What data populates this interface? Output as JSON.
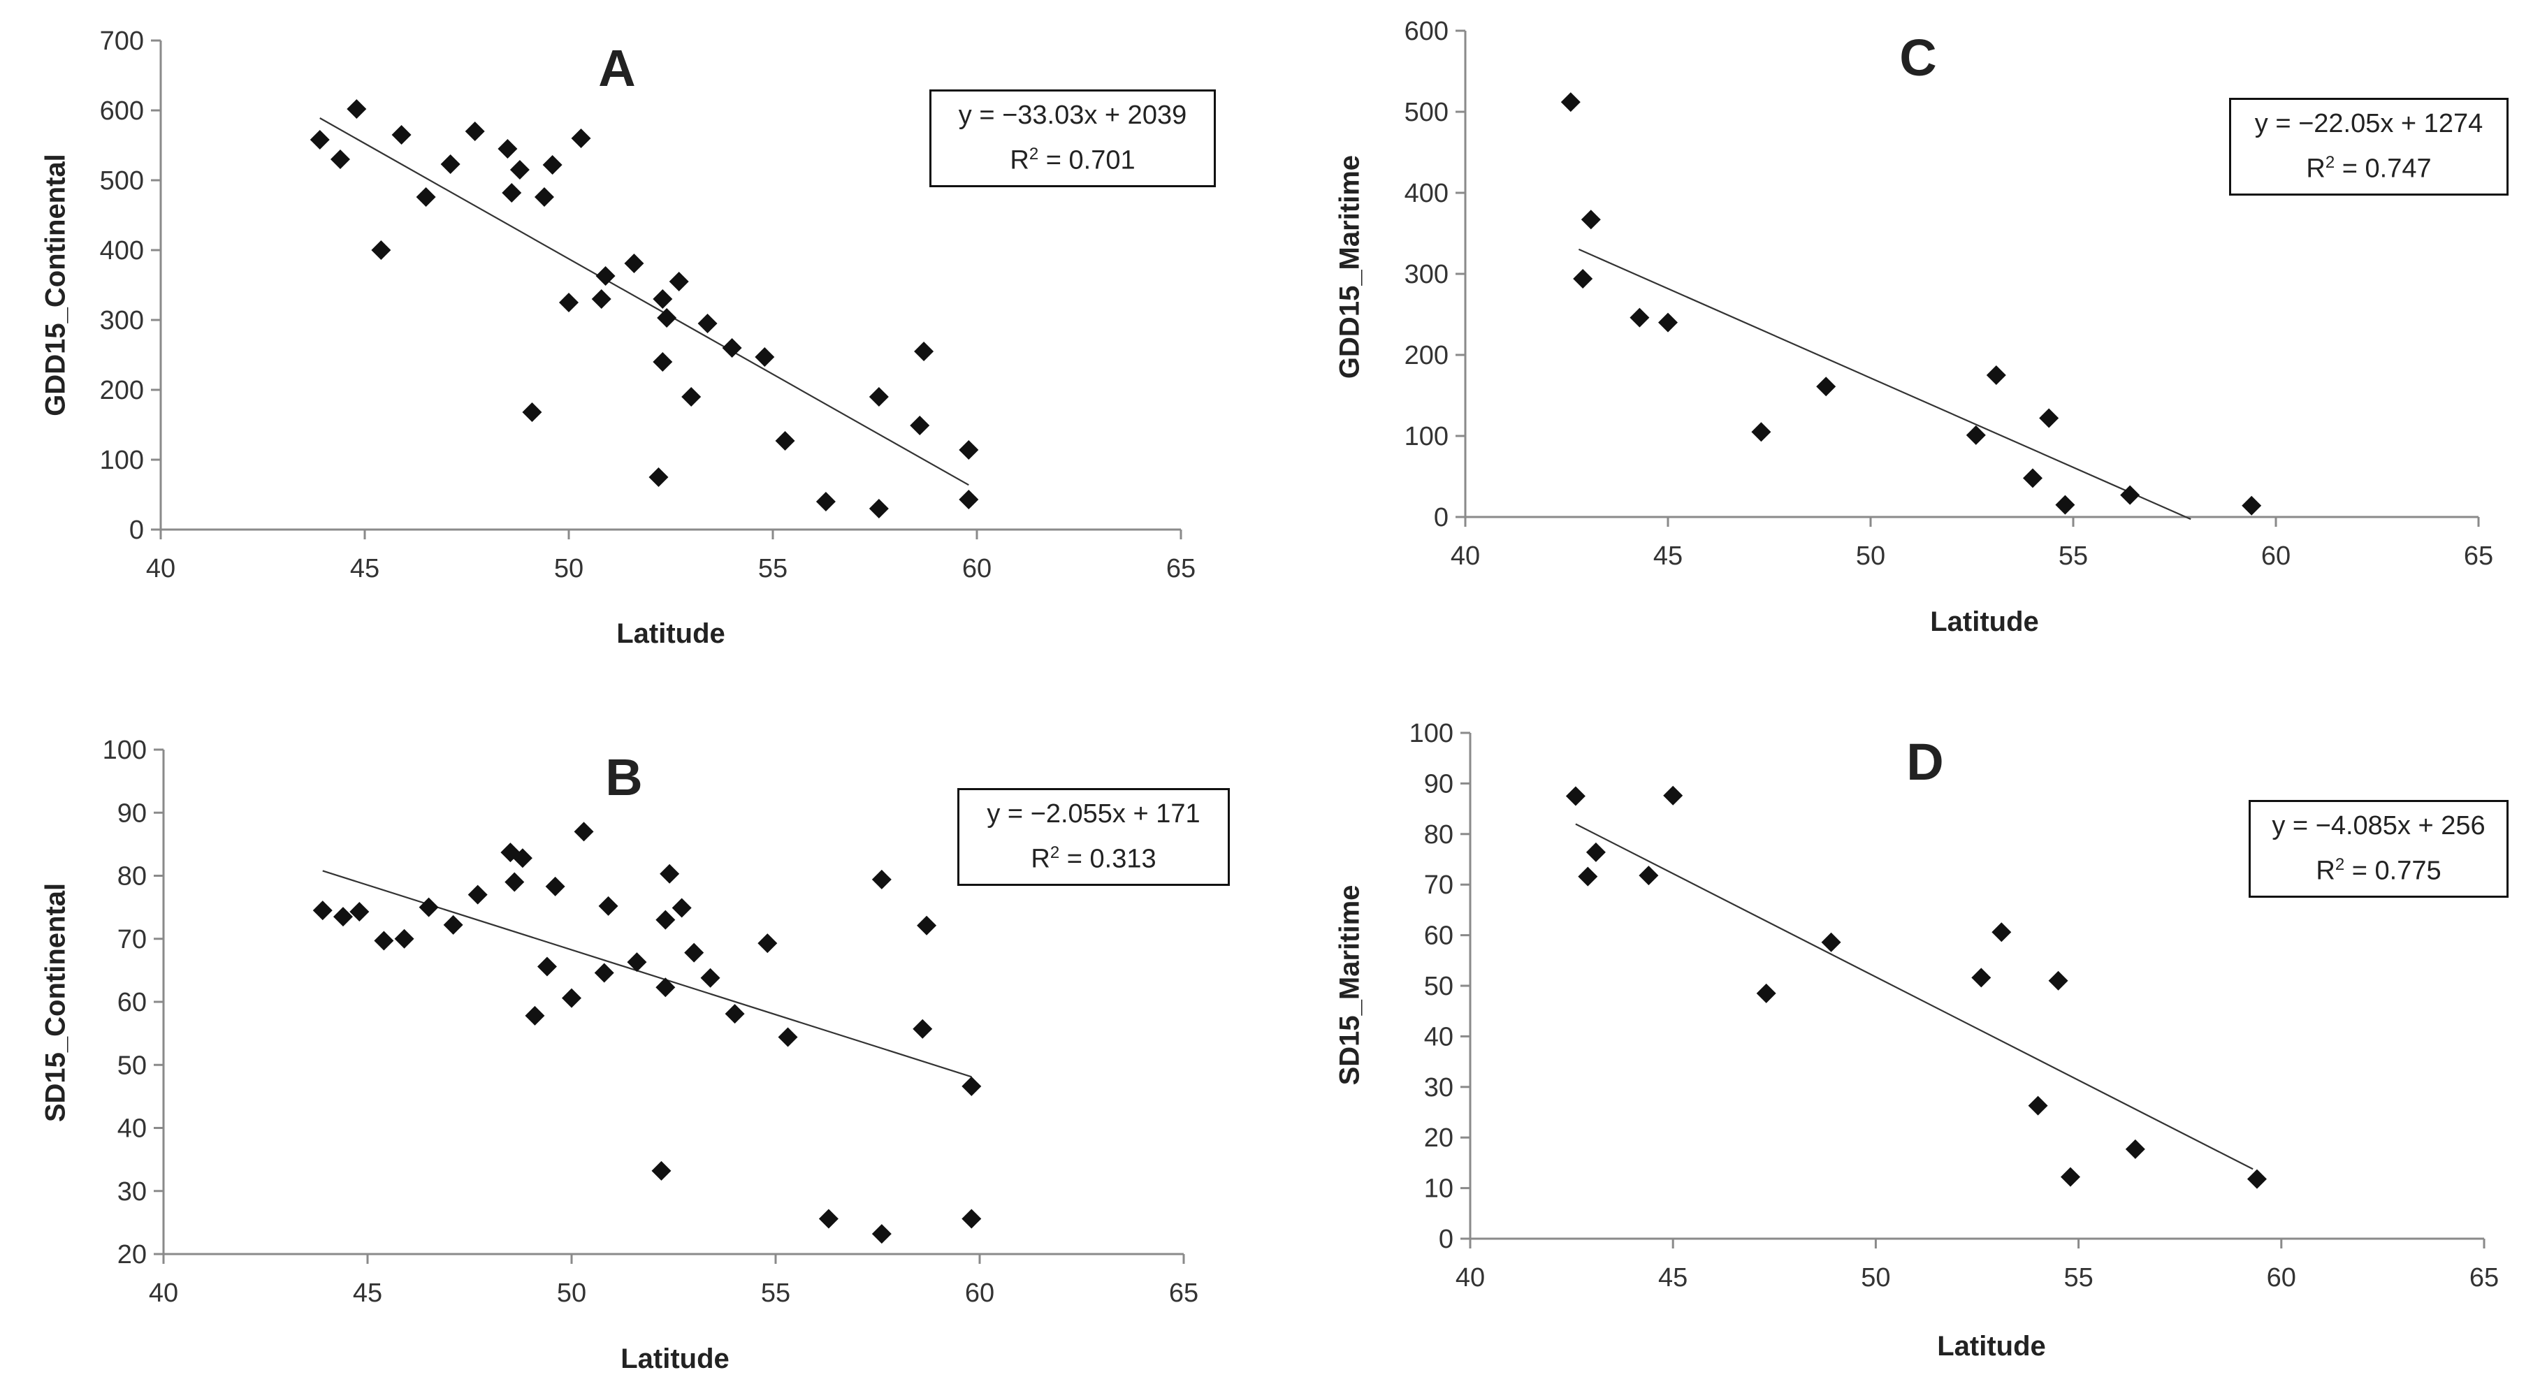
{
  "chart_data": [
    {
      "type": "scatter",
      "panel_letter": "A",
      "xlabel": "Latitude",
      "ylabel": "GDD15_Continental",
      "xlim": [
        40,
        65
      ],
      "ylim": [
        0,
        700
      ],
      "xticks": [
        40,
        45,
        50,
        55,
        60,
        65
      ],
      "yticks": [
        0,
        100,
        200,
        300,
        400,
        500,
        600,
        700
      ],
      "trendline": {
        "slope": -33.03,
        "intercept": 2039,
        "x_range": [
          43.9,
          59.8
        ]
      },
      "equation": "y = −33.03x + 2039",
      "r2_prefix": "R",
      "r2_sup": "2",
      "r2_value": " = 0.701",
      "points": [
        [
          43.9,
          558
        ],
        [
          44.4,
          530
        ],
        [
          44.8,
          602
        ],
        [
          45.4,
          400
        ],
        [
          45.9,
          565
        ],
        [
          46.5,
          476
        ],
        [
          47.1,
          523
        ],
        [
          47.7,
          570
        ],
        [
          48.5,
          545
        ],
        [
          48.6,
          482
        ],
        [
          48.8,
          515
        ],
        [
          49.1,
          168
        ],
        [
          49.4,
          476
        ],
        [
          49.6,
          522
        ],
        [
          50.0,
          325
        ],
        [
          50.3,
          560
        ],
        [
          50.8,
          330
        ],
        [
          50.9,
          363
        ],
        [
          51.6,
          381
        ],
        [
          52.2,
          75
        ],
        [
          52.3,
          330
        ],
        [
          52.3,
          240
        ],
        [
          52.4,
          303
        ],
        [
          52.7,
          355
        ],
        [
          53.0,
          190
        ],
        [
          53.4,
          295
        ],
        [
          54.0,
          260
        ],
        [
          54.8,
          247
        ],
        [
          55.3,
          127
        ],
        [
          56.3,
          40
        ],
        [
          57.6,
          30
        ],
        [
          57.6,
          190
        ],
        [
          58.6,
          149
        ],
        [
          58.7,
          255
        ],
        [
          59.8,
          114
        ],
        [
          59.8,
          43
        ]
      ]
    },
    {
      "type": "scatter",
      "panel_letter": "B",
      "xlabel": "Latitude",
      "ylabel": "SD15_Continental",
      "xlim": [
        40,
        65
      ],
      "ylim": [
        20,
        100
      ],
      "xticks": [
        40,
        45,
        50,
        55,
        60,
        65
      ],
      "yticks": [
        20,
        30,
        40,
        50,
        60,
        70,
        80,
        90,
        100
      ],
      "trendline": {
        "slope": -2.055,
        "intercept": 171,
        "x_range": [
          43.9,
          59.8
        ]
      },
      "equation": "y = −2.055x + 171",
      "r2_prefix": "R",
      "r2_sup": "2",
      "r2_value": " = 0.313",
      "points": [
        [
          43.9,
          74.5
        ],
        [
          44.4,
          73.5
        ],
        [
          44.8,
          74.3
        ],
        [
          45.4,
          69.7
        ],
        [
          45.9,
          70.0
        ],
        [
          46.5,
          75.0
        ],
        [
          47.1,
          72.2
        ],
        [
          47.7,
          77.0
        ],
        [
          48.5,
          83.7
        ],
        [
          48.6,
          79.0
        ],
        [
          48.8,
          82.8
        ],
        [
          49.1,
          57.8
        ],
        [
          49.4,
          65.6
        ],
        [
          49.6,
          78.3
        ],
        [
          50.0,
          60.6
        ],
        [
          50.3,
          87.0
        ],
        [
          50.8,
          64.6
        ],
        [
          50.9,
          75.2
        ],
        [
          51.6,
          66.3
        ],
        [
          52.2,
          33.2
        ],
        [
          52.3,
          73.0
        ],
        [
          52.3,
          62.3
        ],
        [
          52.4,
          80.3
        ],
        [
          52.7,
          74.9
        ],
        [
          53.0,
          67.8
        ],
        [
          53.4,
          63.8
        ],
        [
          54.0,
          58.1
        ],
        [
          54.8,
          69.3
        ],
        [
          55.3,
          54.4
        ],
        [
          56.3,
          25.6
        ],
        [
          57.6,
          79.4
        ],
        [
          57.6,
          23.2
        ],
        [
          58.6,
          55.7
        ],
        [
          58.7,
          72.1
        ],
        [
          59.8,
          46.6
        ],
        [
          59.8,
          25.6
        ]
      ]
    },
    {
      "type": "scatter",
      "panel_letter": "C",
      "xlabel": "Latitude",
      "ylabel": "GDD15_Maritime",
      "xlim": [
        40,
        65
      ],
      "ylim": [
        0,
        600
      ],
      "xticks": [
        40,
        45,
        50,
        55,
        60,
        65
      ],
      "yticks": [
        0,
        100,
        200,
        300,
        400,
        500,
        600
      ],
      "trendline": {
        "slope": -22.05,
        "intercept": 1274,
        "x_range": [
          42.8,
          57.9
        ]
      },
      "equation": "y = −22.05x + 1274",
      "r2_prefix": "R",
      "r2_sup": "2",
      "r2_value": " = 0.747",
      "points": [
        [
          42.6,
          512
        ],
        [
          42.9,
          294
        ],
        [
          43.1,
          367
        ],
        [
          44.3,
          246
        ],
        [
          45.0,
          240
        ],
        [
          47.3,
          105
        ],
        [
          48.9,
          161
        ],
        [
          52.6,
          101
        ],
        [
          53.1,
          175
        ],
        [
          54.0,
          48
        ],
        [
          54.4,
          122
        ],
        [
          54.8,
          15
        ],
        [
          56.4,
          27
        ],
        [
          59.4,
          14
        ]
      ]
    },
    {
      "type": "scatter",
      "panel_letter": "D",
      "xlabel": "Latitude",
      "ylabel": "SD15_Maritime",
      "xlim": [
        40,
        65
      ],
      "ylim": [
        0,
        100
      ],
      "xticks": [
        40,
        45,
        50,
        55,
        60,
        65
      ],
      "yticks": [
        0,
        10,
        20,
        30,
        40,
        50,
        60,
        70,
        80,
        90,
        100
      ],
      "trendline": {
        "slope": -4.085,
        "intercept": 256,
        "x_range": [
          42.6,
          59.3
        ]
      },
      "equation": "y = −4.085x + 256",
      "r2_prefix": "R",
      "r2_sup": "2",
      "r2_value": " = 0.775",
      "points": [
        [
          42.6,
          87.5
        ],
        [
          42.9,
          71.6
        ],
        [
          43.1,
          76.4
        ],
        [
          44.4,
          71.8
        ],
        [
          45.0,
          87.6
        ],
        [
          47.3,
          48.5
        ],
        [
          48.9,
          58.6
        ],
        [
          52.6,
          51.6
        ],
        [
          53.1,
          60.6
        ],
        [
          54.0,
          26.3
        ],
        [
          54.5,
          51.0
        ],
        [
          54.8,
          12.2
        ],
        [
          56.4,
          17.7
        ],
        [
          59.4,
          11.8
        ]
      ]
    }
  ]
}
